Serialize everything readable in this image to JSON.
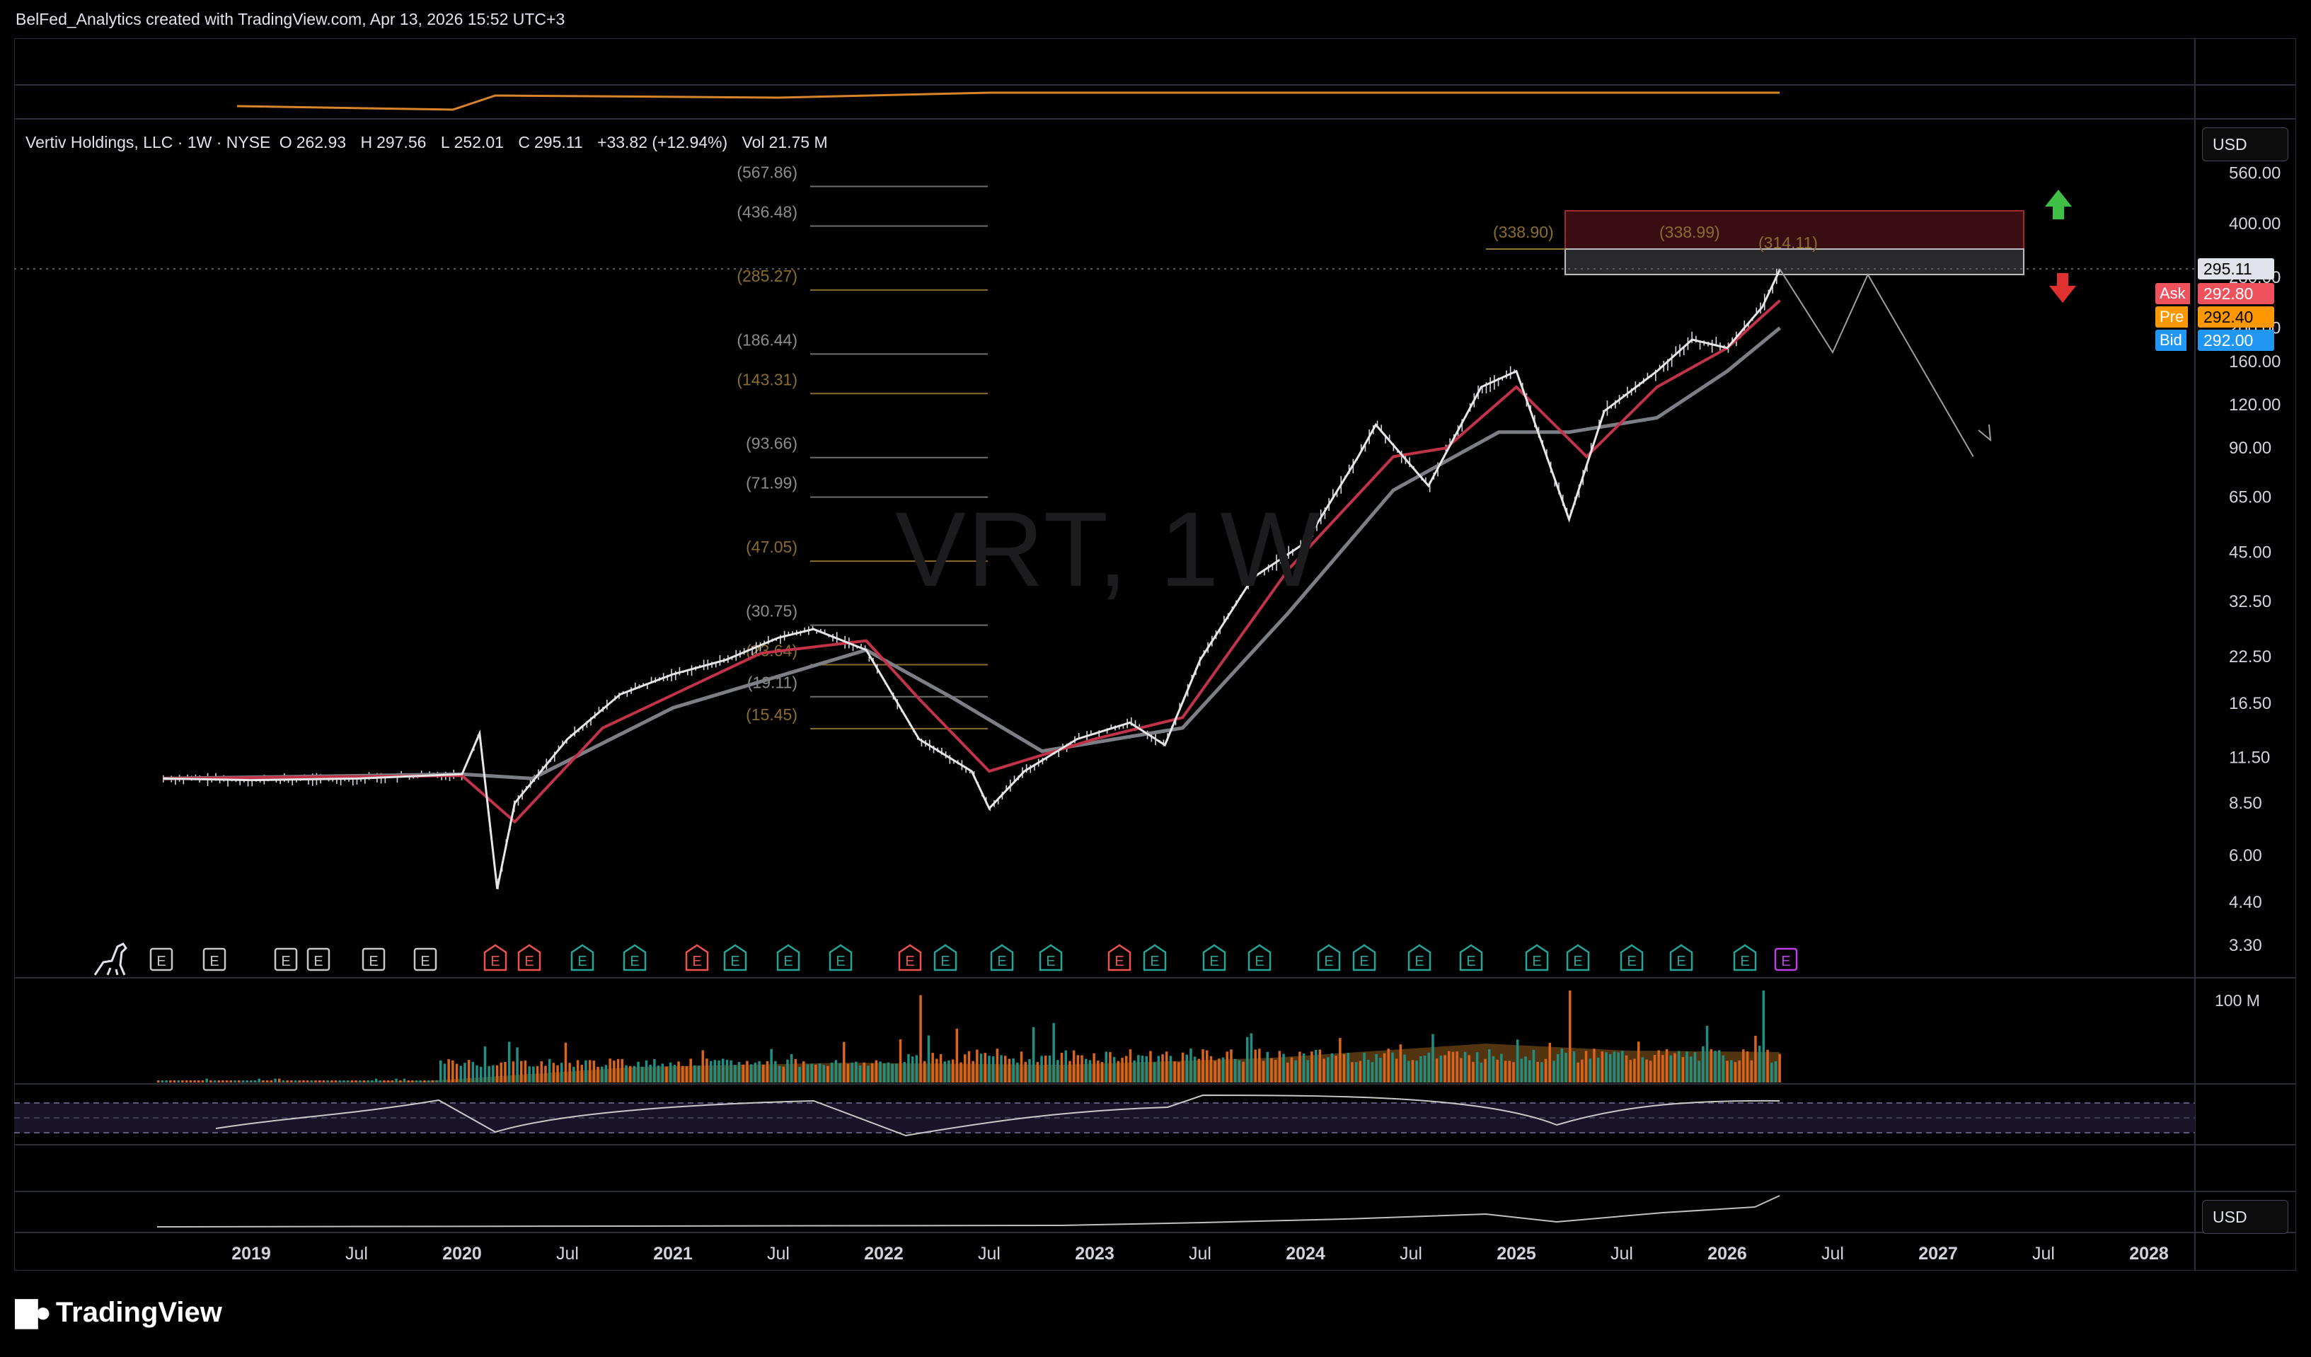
{
  "header": {
    "attribution": "BelFed_Analytics created with TradingView.com, Apr 13, 2026 15:52 UTC+3"
  },
  "legend": {
    "symbol": "Vertiv Holdings, LLC · 1W · NYSE",
    "open_label": "O",
    "open": "262.93",
    "high_label": "H",
    "high": "297.56",
    "low_label": "L",
    "low": "252.01",
    "close_label": "C",
    "close": "295.11",
    "change": "+33.82 (+12.94%)",
    "vol_label": "Vol",
    "volume": "21.75 M"
  },
  "watermark": "VRT, 1W",
  "currency_top": "USD",
  "currency_bottom": "USD",
  "price_tags": {
    "last": "295.11",
    "ask_label": "Ask",
    "ask": "292.80",
    "pre_label": "Pre",
    "pre": "292.40",
    "bid_label": "Bid",
    "bid": "292.00"
  },
  "logo_text": "TradingView",
  "colors": {
    "background": "#000000",
    "up_candle": "#d1d4dc",
    "ema_fast": "#c2334a",
    "ema_slow": "#7c7f86",
    "fib_text": "#8a6d2e",
    "volume_up": "#1f8f84",
    "volume_down": "#d9641e",
    "ask": "#f0525d",
    "pre": "#ff9800",
    "bid": "#2196f3",
    "arrow_up": "#3fbf46",
    "arrow_down": "#e03030",
    "earnings_up": "#26a69a",
    "earnings_down": "#ef5350",
    "earnings_next": "#c040e8"
  },
  "chart_data": {
    "type": "line",
    "symbol": "VRT",
    "interval": "1W",
    "y_scale": "log",
    "y_ticks": [
      "560.00",
      "400.00",
      "280.00",
      "200.00",
      "160.00",
      "120.00",
      "90.00",
      "65.00",
      "45.00",
      "32.50",
      "22.50",
      "16.50",
      "11.50",
      "8.50",
      "6.00",
      "4.40",
      "3.30"
    ],
    "x_ticks": [
      "2019",
      "Jul",
      "2020",
      "Jul",
      "2021",
      "Jul",
      "2022",
      "Jul",
      "2023",
      "Jul",
      "2024",
      "Jul",
      "2025",
      "Jul",
      "2026",
      "Jul",
      "2027",
      "Jul",
      "2028"
    ],
    "x_tick_bold": [
      true,
      false,
      true,
      false,
      true,
      false,
      true,
      false,
      true,
      false,
      true,
      false,
      true,
      false,
      true,
      false,
      true,
      false,
      true
    ],
    "fib_levels": [
      {
        "label": "(567.86)",
        "value": 567.86
      },
      {
        "label": "(436.48)",
        "value": 436.48
      },
      {
        "label": "(285.27)",
        "value": 285.27
      },
      {
        "label": "(186.44)",
        "value": 186.44
      },
      {
        "label": "(143.31)",
        "value": 143.31
      },
      {
        "label": "(93.66)",
        "value": 93.66
      },
      {
        "label": "(71.99)",
        "value": 71.99
      },
      {
        "label": "(47.05)",
        "value": 47.05
      },
      {
        "label": "(30.75)",
        "value": 30.75
      },
      {
        "label": "(23.64)",
        "value": 23.64
      },
      {
        "label": "(19.11)",
        "value": 19.11
      },
      {
        "label": "(15.45)",
        "value": 15.45
      }
    ],
    "zone_labels": [
      {
        "label": "(338.90)",
        "value": 338.9
      },
      {
        "label": "(338.99)",
        "value": 338.99
      },
      {
        "label": "(314.11)",
        "value": 314.11
      }
    ],
    "price_path": [
      [
        "2018-08",
        10.0
      ],
      [
        "2019-01",
        9.9
      ],
      [
        "2019-07",
        10.0
      ],
      [
        "2020-01",
        10.3
      ],
      [
        "2020-02",
        13.5
      ],
      [
        "2020-03",
        4.8
      ],
      [
        "2020-04",
        8.5
      ],
      [
        "2020-07",
        13.0
      ],
      [
        "2020-10",
        17.5
      ],
      [
        "2021-01",
        20.0
      ],
      [
        "2021-04",
        22.0
      ],
      [
        "2021-07",
        25.5
      ],
      [
        "2021-09",
        27.0
      ],
      [
        "2021-12",
        23.5
      ],
      [
        "2022-03",
        13.0
      ],
      [
        "2022-06",
        10.5
      ],
      [
        "2022-07",
        8.2
      ],
      [
        "2022-09",
        10.5
      ],
      [
        "2022-12",
        13.0
      ],
      [
        "2023-03",
        14.5
      ],
      [
        "2023-05",
        12.5
      ],
      [
        "2023-07",
        22.0
      ],
      [
        "2023-10",
        38.0
      ],
      [
        "2024-01",
        48.0
      ],
      [
        "2024-04",
        85.0
      ],
      [
        "2024-05",
        105.0
      ],
      [
        "2024-08",
        70.0
      ],
      [
        "2024-11",
        135.0
      ],
      [
        "2025-01",
        150.0
      ],
      [
        "2025-04",
        56.0
      ],
      [
        "2025-06",
        115.0
      ],
      [
        "2025-09",
        150.0
      ],
      [
        "2025-11",
        185.0
      ],
      [
        "2026-01",
        175.0
      ],
      [
        "2026-03",
        230.0
      ],
      [
        "2026-04",
        295.11
      ]
    ],
    "ema_fast_path": [
      [
        "2018-08",
        10.0
      ],
      [
        "2020-01",
        10.2
      ],
      [
        "2020-04",
        7.5
      ],
      [
        "2020-09",
        14.0
      ],
      [
        "2021-06",
        23.0
      ],
      [
        "2021-12",
        25.0
      ],
      [
        "2022-03",
        17.0
      ],
      [
        "2022-07",
        10.5
      ],
      [
        "2023-01",
        13.0
      ],
      [
        "2023-06",
        15.0
      ],
      [
        "2023-12",
        40.0
      ],
      [
        "2024-06",
        85.0
      ],
      [
        "2024-09",
        90.0
      ],
      [
        "2025-01",
        135.0
      ],
      [
        "2025-05",
        85.0
      ],
      [
        "2025-09",
        135.0
      ],
      [
        "2026-01",
        175.0
      ],
      [
        "2026-04",
        240.0
      ]
    ],
    "ema_slow_path": [
      [
        "2018-08",
        10.0
      ],
      [
        "2020-01",
        10.3
      ],
      [
        "2020-05",
        10.0
      ],
      [
        "2021-01",
        16.0
      ],
      [
        "2021-12",
        23.5
      ],
      [
        "2022-05",
        17.0
      ],
      [
        "2022-10",
        12.0
      ],
      [
        "2023-06",
        14.0
      ],
      [
        "2023-12",
        30.0
      ],
      [
        "2024-06",
        68.0
      ],
      [
        "2024-12",
        100.0
      ],
      [
        "2025-04",
        100.0
      ],
      [
        "2025-09",
        110.0
      ],
      [
        "2026-01",
        150.0
      ],
      [
        "2026-04",
        200.0
      ]
    ],
    "projection_path": [
      [
        "2026-04",
        295.0
      ],
      [
        "2026-07",
        170.0
      ],
      [
        "2026-09",
        285.0
      ],
      [
        "2027-03",
        85.0
      ]
    ],
    "volume_spikes": [
      {
        "date": "2022-03",
        "value": 95
      },
      {
        "date": "2025-04",
        "value": 100
      },
      {
        "date": "2026-03",
        "value": 100
      }
    ],
    "volume_axis_label": "100 M"
  }
}
